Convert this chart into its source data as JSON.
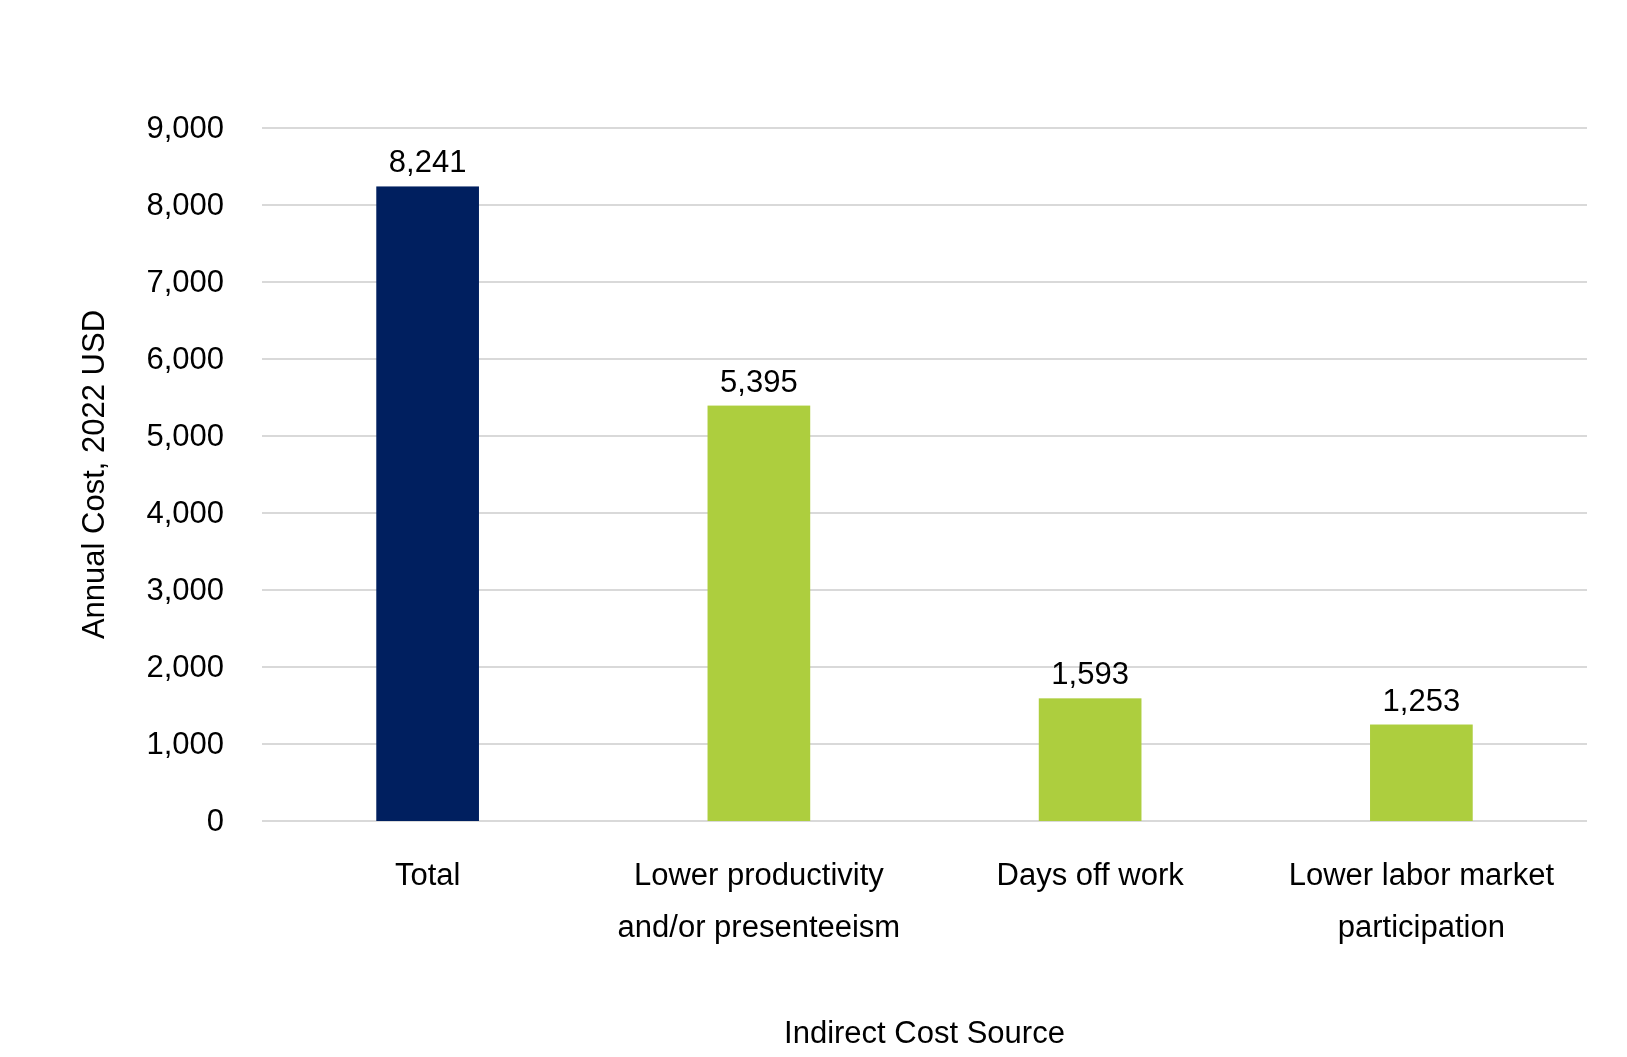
{
  "chart_data": {
    "type": "bar",
    "xlabel": "Indirect Cost Source",
    "ylabel": "Annual Cost, 2022 USD",
    "categories": [
      "Total",
      "Lower productivity and/or presenteeism",
      "Days off work",
      "Lower labor market participation"
    ],
    "values": [
      8241,
      5395,
      1593,
      1253
    ],
    "colors": [
      "#001f5f",
      "#adce3e",
      "#adce3e",
      "#adce3e"
    ],
    "ylim": [
      0,
      9000
    ],
    "yticks": [
      {
        "value": 0,
        "label": "0"
      },
      {
        "value": 1000,
        "label": "1,000"
      },
      {
        "value": 2000,
        "label": "2,000"
      },
      {
        "value": 3000,
        "label": "3,000"
      },
      {
        "value": 4000,
        "label": "4,000"
      },
      {
        "value": 5000,
        "label": "5,000"
      },
      {
        "value": 6000,
        "label": "6,000"
      },
      {
        "value": 7000,
        "label": "7,000"
      },
      {
        "value": 8000,
        "label": "8,000"
      },
      {
        "value": 9000,
        "label": "9,000"
      }
    ],
    "value_labels": [
      "8,241",
      "5,395",
      "1,593",
      "1,253"
    ],
    "grid": "y"
  }
}
